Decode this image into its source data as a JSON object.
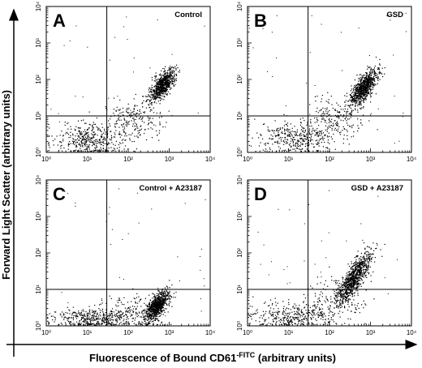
{
  "figure": {
    "ylabel": "Forward Light Scatter (arbitrary units)",
    "xlabel_main": "Fluorescence of Bound CD61",
    "xlabel_sup": "-FITC",
    "xlabel_tail": " (arbitrary units)"
  },
  "chart_data": [
    {
      "type": "scatter",
      "panel": "A",
      "label": "Control",
      "x_scale": "log",
      "y_scale": "log",
      "xlim": [
        1,
        10000
      ],
      "ylim": [
        1,
        10000
      ],
      "x_ticks": [
        "10⁰",
        "10¹",
        "10²",
        "10³",
        "10⁴"
      ],
      "y_ticks": [
        "10⁰",
        "10¹",
        "10²",
        "10³",
        "10⁴"
      ],
      "quadrant_gate": {
        "x": 30,
        "y": 10
      },
      "populations": [
        {
          "center": [
            700,
            70
          ],
          "spread": [
            0.16,
            0.22
          ],
          "share": 0.55,
          "shape": "diagonal"
        },
        {
          "center": [
            12,
            2.2
          ],
          "spread": [
            0.45,
            0.22
          ],
          "share": 0.3,
          "shape": "blob"
        },
        {
          "center": [
            150,
            8
          ],
          "spread": [
            0.35,
            0.3
          ],
          "share": 0.15,
          "shape": "blob"
        }
      ]
    },
    {
      "type": "scatter",
      "panel": "B",
      "label": "GSD",
      "x_scale": "log",
      "y_scale": "log",
      "xlim": [
        1,
        10000
      ],
      "ylim": [
        1,
        10000
      ],
      "x_ticks": [
        "10⁰",
        "10¹",
        "10²",
        "10³",
        "10⁴"
      ],
      "y_ticks": [
        "10⁰",
        "10¹",
        "10²",
        "10³",
        "10⁴"
      ],
      "quadrant_gate": {
        "x": 30,
        "y": 10
      },
      "populations": [
        {
          "center": [
            700,
            60
          ],
          "spread": [
            0.17,
            0.24
          ],
          "share": 0.6,
          "shape": "diagonal"
        },
        {
          "center": [
            14,
            2.5
          ],
          "spread": [
            0.45,
            0.22
          ],
          "share": 0.25,
          "shape": "blob"
        },
        {
          "center": [
            140,
            8
          ],
          "spread": [
            0.35,
            0.3
          ],
          "share": 0.15,
          "shape": "blob"
        }
      ]
    },
    {
      "type": "scatter",
      "panel": "C",
      "label": "Control + A23187",
      "x_scale": "log",
      "y_scale": "log",
      "xlim": [
        1,
        10000
      ],
      "ylim": [
        1,
        10000
      ],
      "x_ticks": [
        "10⁰",
        "10¹",
        "10²",
        "10³",
        "10⁴"
      ],
      "y_ticks": [
        "10⁰",
        "10¹",
        "10²",
        "10³",
        "10⁴"
      ],
      "quadrant_gate": {
        "x": 30,
        "y": 10
      },
      "populations": [
        {
          "center": [
            500,
            3.5
          ],
          "spread": [
            0.16,
            0.2
          ],
          "share": 0.6,
          "shape": "diagonal"
        },
        {
          "center": [
            15,
            1.6
          ],
          "spread": [
            0.5,
            0.15
          ],
          "share": 0.3,
          "shape": "blob"
        },
        {
          "center": [
            150,
            2.5
          ],
          "spread": [
            0.4,
            0.25
          ],
          "share": 0.1,
          "shape": "blob"
        }
      ]
    },
    {
      "type": "scatter",
      "panel": "D",
      "label": "GSD + A23187",
      "x_scale": "log",
      "y_scale": "log",
      "xlim": [
        1,
        10000
      ],
      "ylim": [
        1,
        10000
      ],
      "x_ticks": [
        "10⁰",
        "10¹",
        "10²",
        "10³",
        "10⁴"
      ],
      "y_ticks": [
        "10⁰",
        "10¹",
        "10²",
        "10³",
        "10⁴"
      ],
      "quadrant_gate": {
        "x": 30,
        "y": 10
      },
      "populations": [
        {
          "center": [
            400,
            20
          ],
          "spread": [
            0.18,
            0.35
          ],
          "share": 0.65,
          "shape": "diagonal"
        },
        {
          "center": [
            15,
            1.8
          ],
          "spread": [
            0.5,
            0.18
          ],
          "share": 0.25,
          "shape": "blob"
        },
        {
          "center": [
            150,
            5
          ],
          "spread": [
            0.4,
            0.3
          ],
          "share": 0.1,
          "shape": "blob"
        }
      ]
    }
  ]
}
